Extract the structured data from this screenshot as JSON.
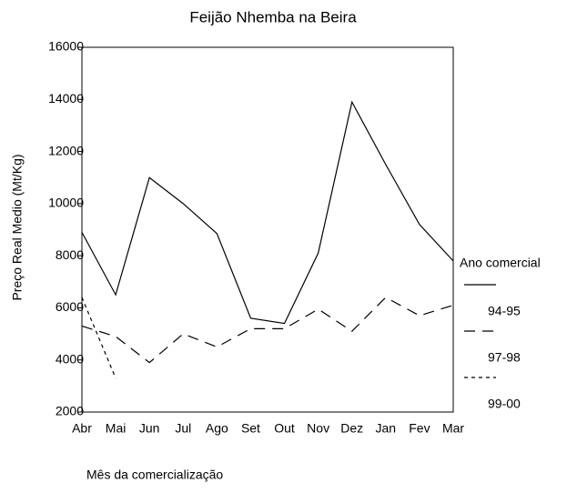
{
  "chart_data": {
    "type": "line",
    "title": "Feijão Nhemba na Beira",
    "x_label": "Mês da comercialização",
    "y_label": "Preço Real Medio (Mt/Kg)",
    "categories": [
      "Abr",
      "Mai",
      "Jun",
      "Jul",
      "Ago",
      "Set",
      "Out",
      "Nov",
      "Dez",
      "Jan",
      "Fev",
      "Mar"
    ],
    "series": [
      {
        "name": "94-95",
        "color": "#000000",
        "dash": "solid",
        "values": [
          8900,
          6500,
          11000,
          10000,
          8850,
          5600,
          5400,
          8100,
          13900,
          11500,
          9200,
          7800
        ]
      },
      {
        "name": "97-98",
        "color": "#000000",
        "dash": "dashed",
        "values": [
          5300,
          4900,
          3900,
          5000,
          4500,
          5200,
          5200,
          5950,
          5100,
          6400,
          5700,
          6100
        ]
      },
      {
        "name": "99-00",
        "color": "#000000",
        "dash": "dotted",
        "values": [
          6400,
          3300,
          null,
          null,
          null,
          null,
          null,
          null,
          null,
          null,
          null,
          null
        ]
      }
    ],
    "legend_title": "Ano comercial",
    "legend": "right",
    "ylim": [
      2000,
      16000
    ],
    "yticks": [
      2000,
      4000,
      6000,
      8000,
      10000,
      12000,
      14000,
      16000
    ]
  }
}
